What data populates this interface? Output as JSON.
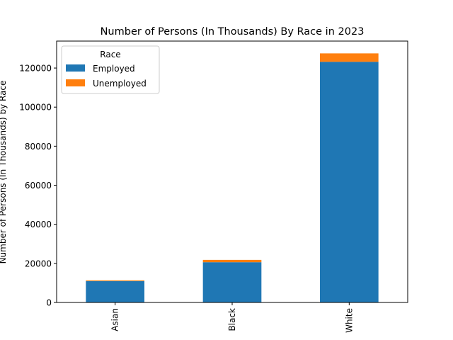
{
  "chart_data": {
    "type": "bar",
    "stacked": true,
    "title": "Number of Persons (In Thousands) By Race in 2023",
    "xlabel": "",
    "ylabel": "Number of Persons (In Thousands) by Race",
    "categories": [
      "Asian",
      "Black",
      "White"
    ],
    "series": [
      {
        "name": "Employed",
        "values": [
          10900,
          20600,
          123200
        ],
        "color": "#1f77b4"
      },
      {
        "name": "Unemployed",
        "values": [
          400,
          1200,
          4300
        ],
        "color": "#ff7f0e"
      }
    ],
    "ylim": [
      0,
      133800
    ],
    "yticks": [
      0,
      20000,
      40000,
      60000,
      80000,
      100000,
      120000
    ],
    "ytick_labels": [
      "0",
      "20000",
      "40000",
      "60000",
      "80000",
      "100000",
      "120000"
    ],
    "grid": false,
    "legend": {
      "title": "Race",
      "position": "top-left"
    }
  }
}
